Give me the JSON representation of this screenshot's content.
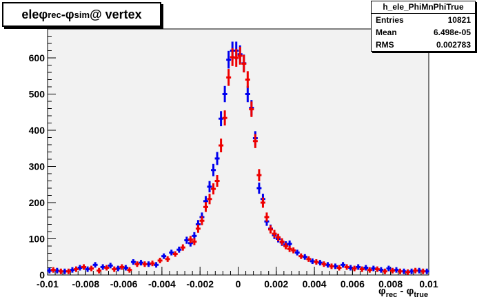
{
  "title": {
    "main": "ele ",
    "phi1": "φ",
    "sub1": "rec",
    "minus": " - ",
    "phi2": "φ",
    "sub2": "sim",
    "suffix": " @ vertex"
  },
  "stats": {
    "name": "h_ele_PhiMnPhiTrue",
    "rows": [
      {
        "label": "Entries",
        "value": "10821"
      },
      {
        "label": "Mean",
        "value": "6.498e-05"
      },
      {
        "label": "RMS",
        "value": "0.002783"
      }
    ]
  },
  "xaxis_label": {
    "phi1": "φ",
    "sub1": "rec",
    "minus": " - ",
    "phi2": "φ",
    "sub2": "true"
  },
  "colors": {
    "frame_bg": "#f2f2f2",
    "series_a": "#0000ee",
    "series_b": "#ee0000"
  },
  "chart_data": {
    "type": "scatter",
    "xlim": [
      -0.01,
      0.01
    ],
    "ylim": [
      0,
      680
    ],
    "xticks": [
      "-0.01",
      "-0.008",
      "-0.006",
      "-0.004",
      "-0.002",
      "0",
      "0.002",
      "0.004",
      "0.006",
      "0.008",
      "0.01"
    ],
    "xtick_values": [
      -0.01,
      -0.008,
      -0.006,
      -0.004,
      -0.002,
      0,
      0.002,
      0.004,
      0.006,
      0.008,
      0.01
    ],
    "yticks": [
      "0",
      "100",
      "200",
      "300",
      "400",
      "500",
      "600"
    ],
    "ytick_values": [
      0,
      100,
      200,
      300,
      400,
      500,
      600
    ],
    "grid": false,
    "series": [
      {
        "color": "blue",
        "x": [
          -0.0099,
          -0.0095,
          -0.0091,
          -0.0087,
          -0.0083,
          -0.0079,
          -0.0075,
          -0.0071,
          -0.0067,
          -0.0063,
          -0.0059,
          -0.0055,
          -0.0051,
          -0.0047,
          -0.0043,
          -0.0039,
          -0.0035,
          -0.0031,
          -0.0027,
          -0.0025,
          -0.0023,
          -0.0021,
          -0.0019,
          -0.0017,
          -0.0015,
          -0.0013,
          -0.0011,
          -0.0009,
          -0.0007,
          -0.0005,
          -0.0003,
          -0.0001,
          0.0001,
          0.0003,
          0.0005,
          0.0007,
          0.0009,
          0.0011,
          0.0013,
          0.0015,
          0.0017,
          0.0019,
          0.0021,
          0.0023,
          0.0025,
          0.0027,
          0.0031,
          0.0035,
          0.0039,
          0.0043,
          0.0047,
          0.0051,
          0.0055,
          0.0059,
          0.0063,
          0.0067,
          0.0071,
          0.0075,
          0.0079,
          0.0083,
          0.0087,
          0.0091,
          0.0095,
          0.0099
        ],
        "y": [
          12,
          12,
          10,
          14,
          20,
          16,
          28,
          22,
          26,
          18,
          20,
          36,
          34,
          30,
          28,
          52,
          62,
          70,
          96,
          88,
          108,
          140,
          160,
          204,
          244,
          290,
          322,
          432,
          500,
          595,
          620,
          620,
          610,
          585,
          500,
          462,
          378,
          240,
          210,
          148,
          128,
          110,
          100,
          90,
          84,
          86,
          62,
          50,
          38,
          34,
          28,
          24,
          28,
          20,
          22,
          20,
          18,
          14,
          18,
          14,
          10,
          10,
          12,
          10
        ]
      },
      {
        "color": "red",
        "x": [
          -0.0097,
          -0.0093,
          -0.0089,
          -0.0085,
          -0.0081,
          -0.0077,
          -0.0073,
          -0.0069,
          -0.0065,
          -0.0061,
          -0.0057,
          -0.0053,
          -0.0049,
          -0.0045,
          -0.0041,
          -0.0037,
          -0.0033,
          -0.0029,
          -0.0025,
          -0.0023,
          -0.0021,
          -0.0019,
          -0.0017,
          -0.0015,
          -0.0013,
          -0.0011,
          -0.0009,
          -0.0007,
          -0.0005,
          -0.0003,
          -0.0001,
          0.0001,
          0.0003,
          0.0005,
          0.0007,
          0.0009,
          0.0011,
          0.0013,
          0.0015,
          0.0017,
          0.0019,
          0.0021,
          0.0023,
          0.0025,
          0.0027,
          0.0029,
          0.0033,
          0.0037,
          0.0041,
          0.0045,
          0.0049,
          0.0053,
          0.0057,
          0.0061,
          0.0065,
          0.0069,
          0.0073,
          0.0077,
          0.0081,
          0.0085,
          0.0089,
          0.0093,
          0.0097
        ],
        "y": [
          14,
          10,
          10,
          16,
          22,
          18,
          12,
          20,
          16,
          22,
          14,
          30,
          30,
          32,
          40,
          44,
          58,
          76,
          98,
          92,
          128,
          150,
          188,
          210,
          238,
          260,
          358,
          434,
          546,
          602,
          600,
          606,
          584,
          540,
          458,
          370,
          276,
          200,
          160,
          126,
          114,
          104,
          92,
          80,
          72,
          68,
          52,
          44,
          36,
          30,
          24,
          20,
          22,
          18,
          16,
          14,
          16,
          10,
          12,
          10,
          8,
          12,
          10
        ]
      }
    ]
  }
}
